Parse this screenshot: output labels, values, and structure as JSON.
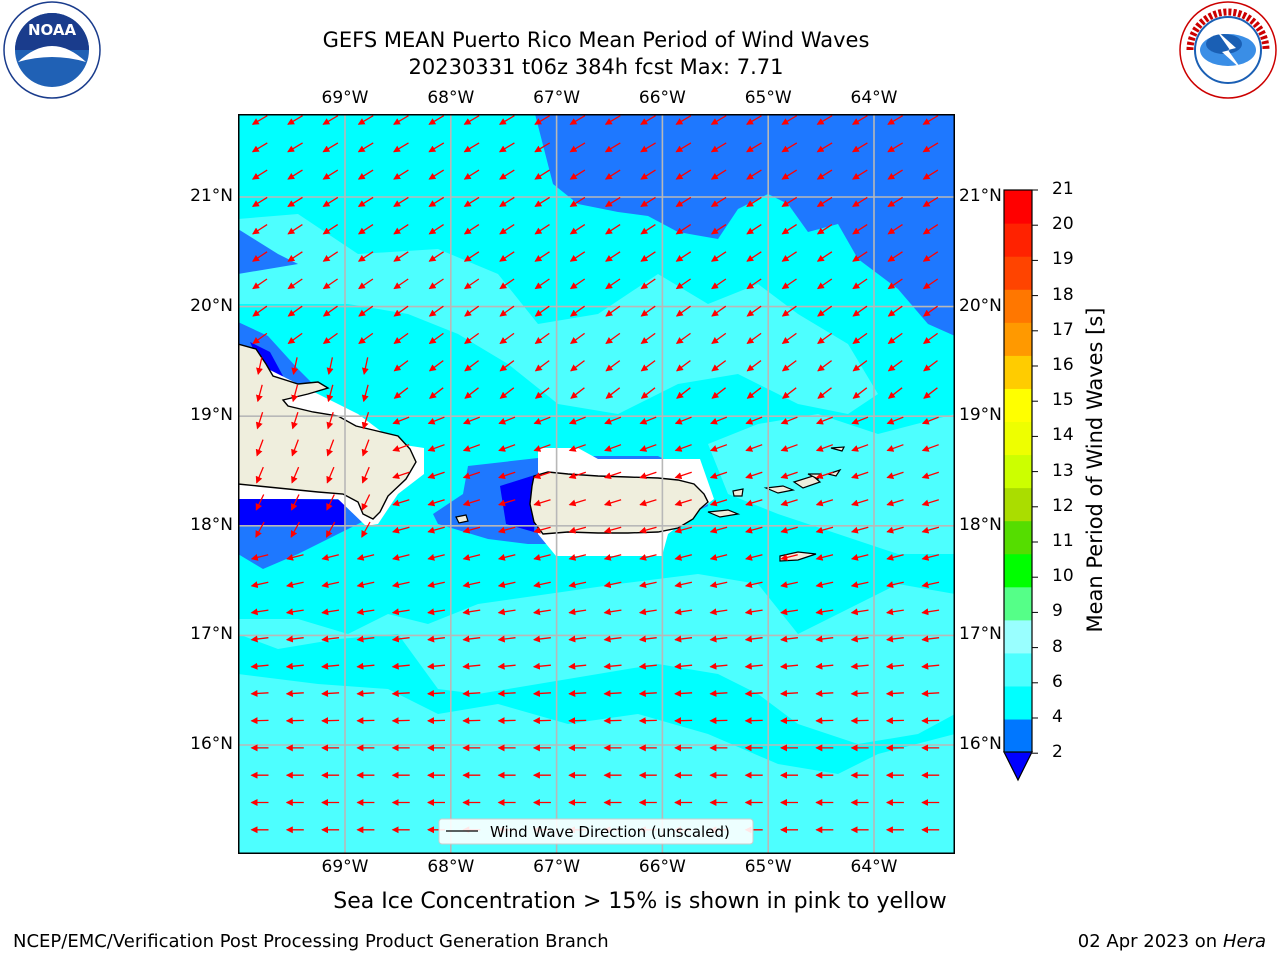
{
  "title_line1": "GEFS MEAN Puerto Rico Mean Period of Wind Waves",
  "title_line2": "20230331 t06z 384h fcst   Max: 7.71",
  "lon_ticks": [
    "69°W",
    "68°W",
    "67°W",
    "66°W",
    "65°W",
    "64°W"
  ],
  "lat_ticks": [
    "21°N",
    "20°N",
    "19°N",
    "18°N",
    "17°N",
    "16°N"
  ],
  "legend_label": "Wind Wave Direction (unscaled)",
  "colorbar": {
    "label": "Mean Period of Wind Waves [s]",
    "tick_labels": [
      "21",
      "20",
      "19",
      "18",
      "17",
      "16",
      "15",
      "14",
      "13",
      "12",
      "11",
      "10",
      "9",
      "8",
      "6",
      "4",
      "2"
    ],
    "colors": [
      "#0000ff",
      "#0077ff",
      "#00ffff",
      "#4dffff",
      "#99ffff",
      "#55ff88",
      "#00ff00",
      "#55dd00",
      "#aadd00",
      "#ccff00",
      "#eeff00",
      "#ffff00",
      "#ffcc00",
      "#ff9900",
      "#ff7700",
      "#ff4400",
      "#ff2200",
      "#ff0000"
    ]
  },
  "map_colors": {
    "period_2_4": "#0000ff",
    "period_4_6": "#1e78ff",
    "period_6_8": "#00ffff",
    "period_8_9": "#4dffff",
    "land": "#efeedd",
    "arrow": "#ff0000"
  },
  "bottom_note": "Sea Ice Concentration > 15% is shown in pink to yellow",
  "footer_left": "NCEP/EMC/Verification Post Processing Product Generation Branch",
  "footer_right_date": "02 Apr 2023 on ",
  "footer_right_machine": "Hera",
  "logos": {
    "noaa": "NOAA",
    "noaa_ring": "NATIONAL OCEANIC AND ATMOSPHERIC ADMINISTRATION · U.S. DEPARTMENT OF COMMERCE",
    "nws": "NATIONAL WEATHER SERVICE"
  }
}
